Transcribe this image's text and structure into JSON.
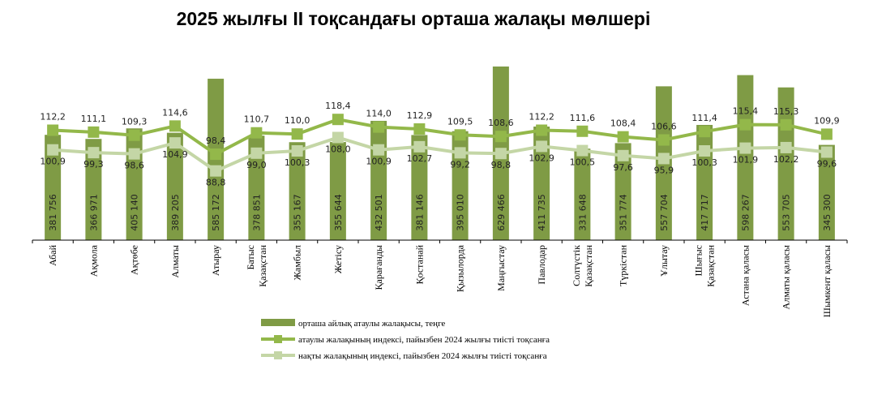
{
  "chart_data": {
    "type": "bar",
    "title": "2025 жылғы ІІ тоқсандағы орташа жалақы мөлшері",
    "categories": [
      [
        "Абай"
      ],
      [
        "Ақмола"
      ],
      [
        "Ақтөбе"
      ],
      [
        "Алматы"
      ],
      [
        "Атырау"
      ],
      [
        "Батыс",
        "Қазақстан"
      ],
      [
        "Жамбыл"
      ],
      [
        "Жетісу"
      ],
      [
        "Қарағанды"
      ],
      [
        "Қостанай"
      ],
      [
        "Қызылорда"
      ],
      [
        "Маңғыстау"
      ],
      [
        "Павлодар"
      ],
      [
        "Солтүстік",
        "Қазақстан"
      ],
      [
        "Түркістан"
      ],
      [
        "Ұлытау"
      ],
      [
        "Шығыс",
        "Қазақстан"
      ],
      [
        "Астана қаласы"
      ],
      [
        "Алматы қаласы"
      ],
      [
        "Шымкент қаласы"
      ]
    ],
    "series": [
      {
        "name": "орташа айлық атаулы жалақысы, теңге",
        "type": "bar",
        "color": "#7f9b45",
        "values": [
          381756,
          366971,
          405140,
          389205,
          585172,
          378851,
          355167,
          355644,
          432501,
          381146,
          395010,
          629466,
          411735,
          331648,
          351774,
          557704,
          417717,
          598267,
          553705,
          345300
        ],
        "labels": [
          "381 756",
          "366 971",
          "405 140",
          "389 205",
          "585 172",
          "378 851",
          "355 167",
          "355 644",
          "432 501",
          "381 146",
          "395 010",
          "629 466",
          "411 735",
          "331 648",
          "351 774",
          "557 704",
          "417 717",
          "598 267",
          "553 705",
          "345 300"
        ]
      },
      {
        "name": "атаулы жалақының индексі, пайызбен 2024 жылғы тиісті тоқсанға",
        "type": "line",
        "color": "#93b84a",
        "values": [
          112.2,
          111.1,
          109.3,
          114.6,
          98.4,
          110.7,
          110.0,
          118.4,
          114.0,
          112.9,
          109.5,
          108.6,
          112.2,
          111.6,
          108.4,
          106.6,
          111.4,
          115.4,
          115.3,
          109.9
        ],
        "labels": [
          "112,2",
          "111,1",
          "109,3",
          "114,6",
          "98,4",
          "110,7",
          "110,0",
          "118,4",
          "114,0",
          "112,9",
          "109,5",
          "108,6",
          "112,2",
          "111,6",
          "108,4",
          "106,6",
          "111,4",
          "115,4",
          "115,3",
          "109,9"
        ]
      },
      {
        "name": "нақты жалақының индексі, пайызбен 2024 жылғы тиісті тоқсанға",
        "type": "line",
        "color": "#c4d6a6",
        "values": [
          100.9,
          99.3,
          98.6,
          104.9,
          88.8,
          99.0,
          100.3,
          108.0,
          100.9,
          102.7,
          99.2,
          98.8,
          102.9,
          100.5,
          97.6,
          95.9,
          100.3,
          101.9,
          102.2,
          99.6
        ],
        "labels": [
          "100,9",
          "99,3",
          "98,6",
          "104,9",
          "88,8",
          "99,0",
          "100,3",
          "108,0",
          "100,9",
          "102,7",
          "99,2",
          "98,8",
          "102,9",
          "100,5",
          "97,6",
          "95,9",
          "100,3",
          "101,9",
          "102,2",
          "99,6"
        ]
      }
    ],
    "ylim": [
      0,
      700000
    ],
    "y2lim": [
      49,
      160
    ],
    "grid": false,
    "legend": "bottom"
  }
}
